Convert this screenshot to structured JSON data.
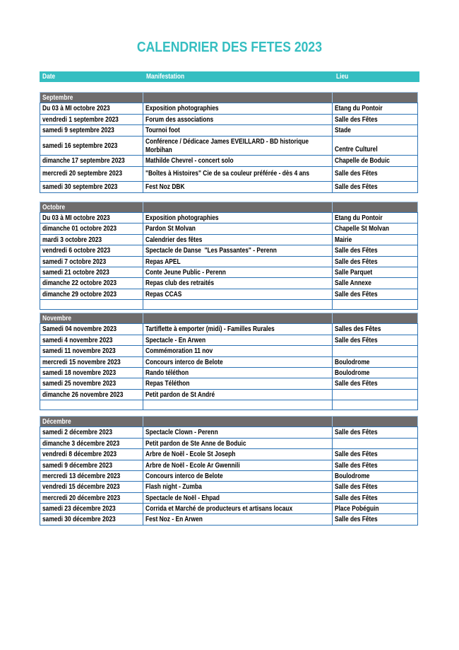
{
  "title": "CALENDRIER DES FETES 2023",
  "columns": {
    "date": "Date",
    "manifestation": "Manifestation",
    "lieu": "Lieu"
  },
  "colors": {
    "accent": "#35bec1",
    "band": "#6f6c6c",
    "border": "#2e74b5",
    "band-border": "#9dc3e6"
  },
  "sections": [
    {
      "month": "Septembre",
      "rows": [
        {
          "date": "Du 03 à MI octobre 2023",
          "manifestation": "Exposition photographies",
          "lieu": "Etang du Pontoir"
        },
        {
          "date": "vendredi 1 septembre 2023",
          "manifestation": "Forum des associations",
          "lieu": "Salle des Fêtes"
        },
        {
          "date": "samedi 9 septembre 2023",
          "manifestation": "Tournoi foot",
          "lieu": "Stade"
        },
        {
          "date": "samedi 16 septembre 2023",
          "manifestation": "Conférence / Dédicace James EVEILLARD - BD historique\nMorbihan",
          "lieu": "Centre Culturel"
        },
        {
          "date": "dimanche 17 septembre 2023",
          "manifestation": "Mathilde Chevrel - concert solo",
          "lieu": "Chapelle de Boduic"
        },
        {
          "date": "mercredi 20 septembre 2023",
          "manifestation": "\"Boîtes à Histoires\" Cie de sa couleur préférée - dès 4 ans",
          "lieu": "Salle des Fêtes"
        },
        {
          "date": "samedi 30 septembre 2023",
          "manifestation": "Fest Noz DBK",
          "lieu": "Salle des Fêtes"
        }
      ]
    },
    {
      "month": "Octobre",
      "rows": [
        {
          "date": "Du 03 à MI octobre 2023",
          "manifestation": "Exposition photographies",
          "lieu": "Etang du Pontoir"
        },
        {
          "date": "dimanche 01 octobre 2023",
          "manifestation": "Pardon St Molvan",
          "lieu": "Chapelle St Molvan"
        },
        {
          "date": "mardi 3 octobre 2023",
          "manifestation": "Calendrier des fêtes",
          "lieu": "Mairie"
        },
        {
          "date": "vendredi 6 octobre 2023",
          "manifestation": "Spectacle de Danse  \"Les Passantes\" - Perenn",
          "lieu": "Salle des Fêtes"
        },
        {
          "date": "samedi 7 octobre 2023",
          "manifestation": "Repas APEL",
          "lieu": "Salle des Fêtes"
        },
        {
          "date": "samedi 21 octobre 2023",
          "manifestation": "Conte Jeune Public - Perenn",
          "lieu": "Salle Parquet"
        },
        {
          "date": "dimanche 22 octobre 2023",
          "manifestation": "Repas club des retraités",
          "lieu": "Salle Annexe"
        },
        {
          "date": "dimanche 29 octobre 2023",
          "manifestation": "Repas CCAS",
          "lieu": "Salle des Fêtes"
        },
        {
          "date": "",
          "manifestation": "",
          "lieu": ""
        }
      ]
    },
    {
      "month": "Novembre",
      "rows": [
        {
          "date": "Samedi 04 novembre 2023",
          "manifestation": "Tartiflette à emporter (midi) - Familles Rurales",
          "lieu": "Salles des Fêtes"
        },
        {
          "date": "samedi 4 novembre 2023",
          "manifestation": "Spectacle - En Arwen",
          "lieu": "Salle des Fêtes"
        },
        {
          "date": "samedi 11 novembre 2023",
          "manifestation": "Commémoration 11 nov",
          "lieu": ""
        },
        {
          "date": "mercredi 15 novembre 2023",
          "manifestation": "Concours interco de Belote",
          "lieu": "Boulodrome"
        },
        {
          "date": "samedi 18 novembre 2023",
          "manifestation": "Rando téléthon",
          "lieu": "Boulodrome"
        },
        {
          "date": "samedi 25 novembre 2023",
          "manifestation": "Repas Téléthon",
          "lieu": "Salle des Fêtes"
        },
        {
          "date": "dimanche 26 novembre 2023",
          "manifestation": "Petit pardon de St André",
          "lieu": ""
        },
        {
          "date": "",
          "manifestation": "",
          "lieu": ""
        }
      ]
    },
    {
      "month": "Décembre",
      "rows": [
        {
          "date": "samedi 2 décembre 2023",
          "manifestation": "Spectacle Clown - Perenn",
          "lieu": "Salle des Fêtes"
        },
        {
          "date": "dimanche 3 décembre 2023",
          "manifestation": "Petit pardon de Ste Anne de Boduic",
          "lieu": ""
        },
        {
          "date": "vendredi 8 décembre 2023",
          "manifestation": "Arbre de Noël - Ecole St Joseph",
          "lieu": "Salle des Fêtes"
        },
        {
          "date": "samedi 9 décembre 2023",
          "manifestation": "Arbre de Noël - Ecole Ar Gwennili",
          "lieu": "Salle des Fêtes"
        },
        {
          "date": "mercredi 13 décembre 2023",
          "manifestation": "Concours interco de Belote",
          "lieu": "Boulodrome"
        },
        {
          "date": "vendredi 15 décembre 2023",
          "manifestation": "Flash night - Zumba",
          "lieu": "Salle des Fêtes"
        },
        {
          "date": "mercredi 20 décembre 2023",
          "manifestation": "Spectacle de Noël - Ehpad",
          "lieu": "Salle des Fêtes"
        },
        {
          "date": "samedi 23 décembre 2023",
          "manifestation": "Corrida et Marché de producteurs et artisans locaux",
          "lieu": "Place Pobéguin"
        },
        {
          "date": "samedi 30 décembre 2023",
          "manifestation": "Fest Noz - En Arwen",
          "lieu": "Salle des Fêtes"
        }
      ]
    }
  ]
}
